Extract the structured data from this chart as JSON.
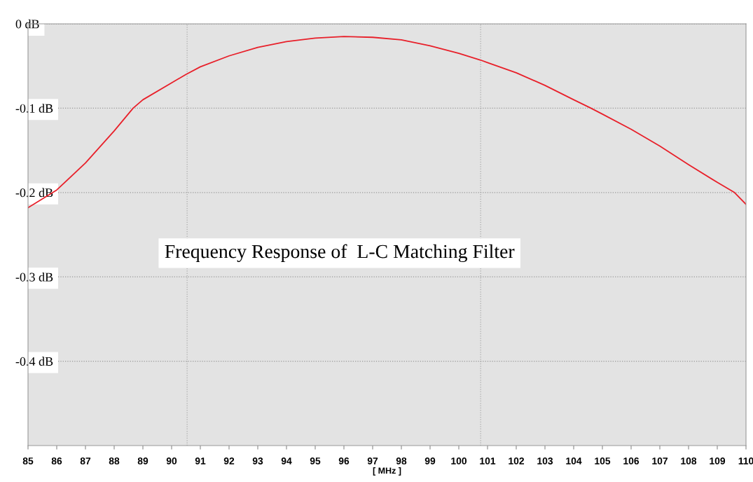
{
  "chart_data": {
    "type": "line",
    "title": "Frequency Response of  L-C Matching Filter",
    "xlabel": "[ MHz ]",
    "x": [
      85,
      86,
      87,
      88,
      88.66,
      89,
      90,
      90.5,
      91,
      92,
      93,
      94,
      95,
      96,
      97,
      98,
      99,
      100,
      100.76,
      101,
      102,
      103,
      104,
      104.6,
      105,
      106,
      107,
      108,
      109,
      109.6,
      110
    ],
    "series": [
      {
        "color": "#e8202a",
        "values": [
          -0.218,
          -0.197,
          -0.165,
          -0.127,
          -0.1,
          -0.09,
          -0.07,
          -0.06,
          -0.051,
          -0.038,
          -0.028,
          -0.021,
          -0.017,
          -0.015,
          -0.016,
          -0.019,
          -0.026,
          -0.035,
          -0.043,
          -0.046,
          -0.058,
          -0.073,
          -0.09,
          -0.1,
          -0.107,
          -0.125,
          -0.145,
          -0.167,
          -0.188,
          -0.2,
          -0.214
        ]
      }
    ],
    "xlim": [
      85,
      110
    ],
    "xticks": [
      85,
      86,
      87,
      88,
      89,
      90,
      91,
      92,
      93,
      94,
      95,
      96,
      97,
      98,
      99,
      100,
      101,
      102,
      103,
      104,
      105,
      106,
      107,
      108,
      109,
      110
    ],
    "ylim": [
      -0.5,
      0
    ],
    "yticks": [
      {
        "value": 0,
        "label": "0 dB"
      },
      {
        "value": -0.1,
        "label": "-0.1 dB"
      },
      {
        "value": -0.2,
        "label": "-0.2 dB"
      },
      {
        "value": -0.3,
        "label": "-0.3 dB"
      },
      {
        "value": -0.4,
        "label": "-0.4 dB"
      }
    ],
    "grid": "y",
    "marker": "none",
    "line_style": "solid",
    "ref_lines": [
      {
        "axis": "x",
        "value": 90.54,
        "color": "#aaaaaa",
        "line_style": "dotted"
      },
      {
        "axis": "x",
        "value": 100.76,
        "color": "#aaaaaa",
        "line_style": "dotted"
      }
    ]
  }
}
